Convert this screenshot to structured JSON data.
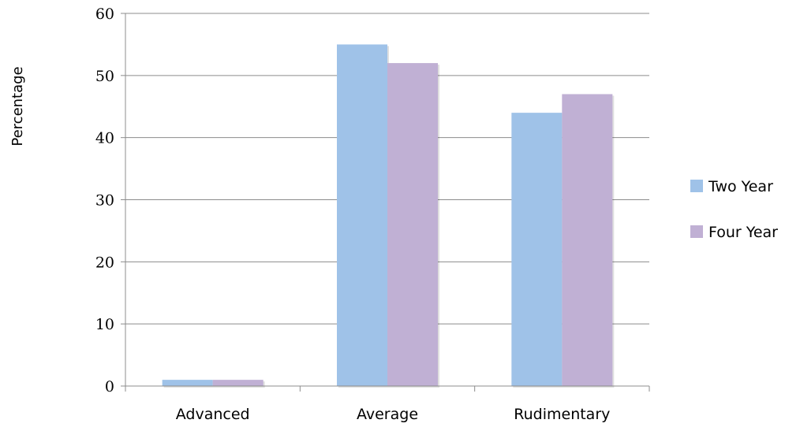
{
  "chart_data": {
    "type": "bar",
    "title": "",
    "xlabel": "",
    "ylabel": "Percentage",
    "categories": [
      "Advanced",
      "Average",
      "Rudimentary"
    ],
    "series": [
      {
        "name": "Two Year",
        "values": [
          1,
          55,
          44
        ],
        "color": "#9fc2e8"
      },
      {
        "name": "Four Year",
        "values": [
          1,
          52,
          47
        ],
        "color": "#c0b0d4"
      }
    ],
    "ylim": [
      0,
      60
    ],
    "yticks": [
      "0",
      "10",
      "20",
      "30",
      "40",
      "50",
      "60"
    ],
    "grid": true,
    "legend_position": "right"
  }
}
